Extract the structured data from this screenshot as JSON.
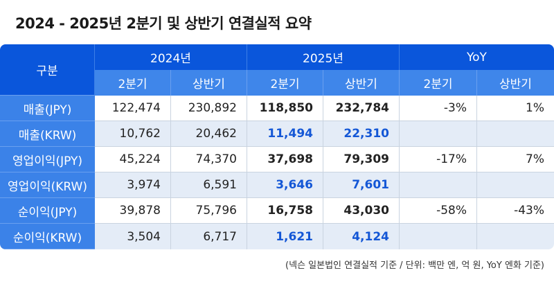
{
  "title": "2024 - 2025년 2분기 및 상반기 연결실적 요약",
  "header": {
    "category": "구분",
    "years": [
      "2024년",
      "2025년",
      "YoY"
    ],
    "sub": [
      "2분기",
      "상반기",
      "2분기",
      "상반기",
      "2분기",
      "상반기"
    ]
  },
  "rows": [
    {
      "label": "매출(JPY)",
      "v": [
        "122,474",
        "230,892",
        "118,850",
        "232,784",
        "-3%",
        "1%"
      ]
    },
    {
      "label": "매출(KRW)",
      "v": [
        "10,762",
        "20,462",
        "11,494",
        "22,310",
        "",
        ""
      ]
    },
    {
      "label": "영업이익(JPY)",
      "v": [
        "45,224",
        "74,370",
        "37,698",
        "79,309",
        "-17%",
        "7%"
      ]
    },
    {
      "label": "영업이익(KRW)",
      "v": [
        "3,974",
        "6,591",
        "3,646",
        "7,601",
        "",
        ""
      ]
    },
    {
      "label": "순이익(JPY)",
      "v": [
        "39,878",
        "75,796",
        "16,758",
        "43,030",
        "-58%",
        "-43%"
      ]
    },
    {
      "label": "순이익(KRW)",
      "v": [
        "3,504",
        "6,717",
        "1,621",
        "4,124",
        "",
        ""
      ]
    }
  ],
  "note": "(넥슨 일본법인 연결실적 기준 / 단위: 백만 엔, 억 원, YoY 엔화 기준)",
  "colors": {
    "header": "#0a56db",
    "subheader": "#3f86ea",
    "highlight": "#1457d6"
  }
}
